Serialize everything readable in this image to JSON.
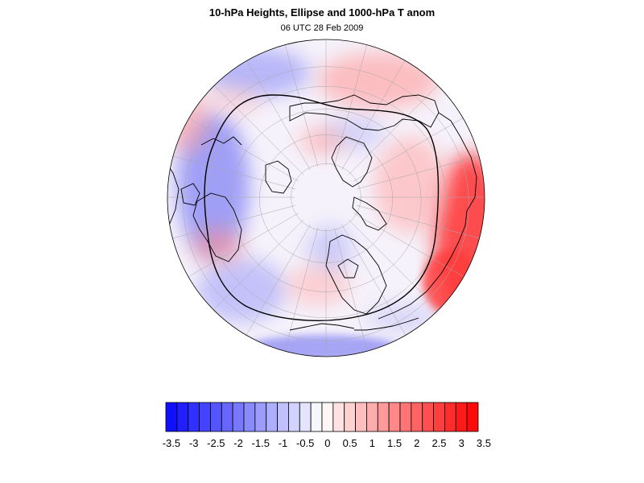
{
  "title": "10-hPa Heights, Ellipse and 1000-hPa T anom",
  "subtitle": "06 UTC 28 Feb 2009",
  "colorbar": {
    "levels": [
      -3.5,
      -3.25,
      -3,
      -2.75,
      -2.5,
      -2.25,
      -2,
      -1.75,
      -1.5,
      -1.25,
      -1,
      -0.75,
      -0.5,
      -0.25,
      0,
      0.25,
      0.5,
      0.75,
      1,
      1.25,
      1.5,
      1.75,
      2,
      2.25,
      2.5,
      2.75,
      3,
      3.25,
      3.5
    ],
    "tick_labels": [
      "-3.5",
      "-3",
      "-2.5",
      "-2",
      "-1.5",
      "-1",
      "-0.5",
      "0",
      "0.5",
      "1",
      "1.5",
      "2",
      "2.5",
      "3",
      "3.5"
    ],
    "min_color": "#1010ff",
    "mid_color": "#ffffff",
    "max_color": "#ff0a0a"
  },
  "map": {
    "projection": "orthographic-north-polar",
    "anomaly_patches": [
      {
        "type": "cold",
        "intensity": 0.55
      },
      {
        "type": "cold",
        "intensity": 0.45
      },
      {
        "type": "cold",
        "intensity": 0.35
      },
      {
        "type": "cold",
        "intensity": 0.4
      },
      {
        "type": "warm",
        "intensity": 0.85
      },
      {
        "type": "warm",
        "intensity": 0.5
      },
      {
        "type": "warm",
        "intensity": 0.45
      },
      {
        "type": "warm",
        "intensity": 0.4
      },
      {
        "type": "warm",
        "intensity": 0.35
      }
    ]
  }
}
